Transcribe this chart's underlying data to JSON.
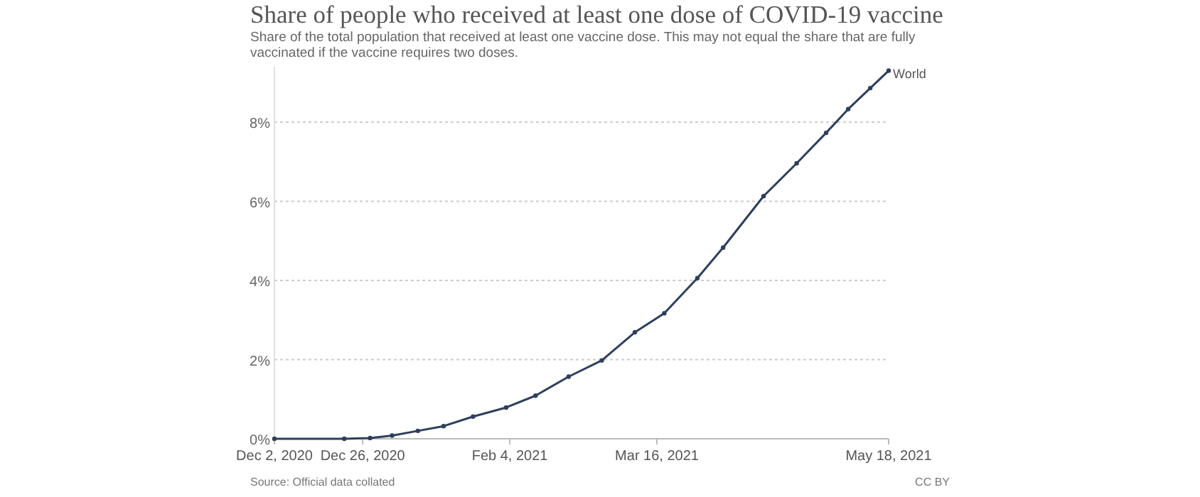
{
  "chart_data": {
    "type": "line",
    "title": "Share of people who received at least one dose of COVID-19 vaccine",
    "subtitle": "Share of the total population that received at least one vaccine dose. This may not equal the share that are fully vaccinated if the vaccine requires two doses.",
    "annotations": [
      "Source: Official data collated",
      "CC BY"
    ],
    "x": [
      "2020-12-02",
      "2020-12-21",
      "2020-12-28",
      "2021-01-03",
      "2021-01-10",
      "2021-01-17",
      "2021-01-25",
      "2021-02-03",
      "2021-02-11",
      "2021-02-20",
      "2021-03-01",
      "2021-03-10",
      "2021-03-18",
      "2021-03-27",
      "2021-04-03",
      "2021-04-14",
      "2021-04-23",
      "2021-05-01",
      "2021-05-07",
      "2021-05-13",
      "2021-05-18"
    ],
    "series": [
      {
        "name": "World",
        "color": "#2e3f5c",
        "values": [
          0,
          0,
          0.02,
          0.08,
          0.2,
          0.32,
          0.56,
          0.79,
          1.09,
          1.57,
          1.98,
          2.69,
          3.17,
          4.06,
          4.83,
          6.13,
          6.96,
          7.73,
          8.33,
          8.86,
          9.3
        ]
      }
    ],
    "xlim": [
      "2020-12-02",
      "2021-05-18"
    ],
    "xticks": [
      {
        "value": "2020-12-02",
        "label": "Dec 2, 2020"
      },
      {
        "value": "2020-12-26",
        "label": "Dec 26, 2020"
      },
      {
        "value": "2021-02-04",
        "label": "Feb 4, 2021"
      },
      {
        "value": "2021-03-16",
        "label": "Mar 16, 2021"
      },
      {
        "value": "2021-05-18",
        "label": "May 18, 2021"
      }
    ],
    "ylim": [
      0,
      9.4
    ],
    "yticks": [
      {
        "value": 0,
        "label": "0%"
      },
      {
        "value": 2,
        "label": "2%"
      },
      {
        "value": 4,
        "label": "4%"
      },
      {
        "value": 6,
        "label": "6%"
      },
      {
        "value": 8,
        "label": "8%"
      }
    ],
    "grid": "y",
    "legend": false,
    "marker": "circle",
    "line_style": "solid"
  }
}
